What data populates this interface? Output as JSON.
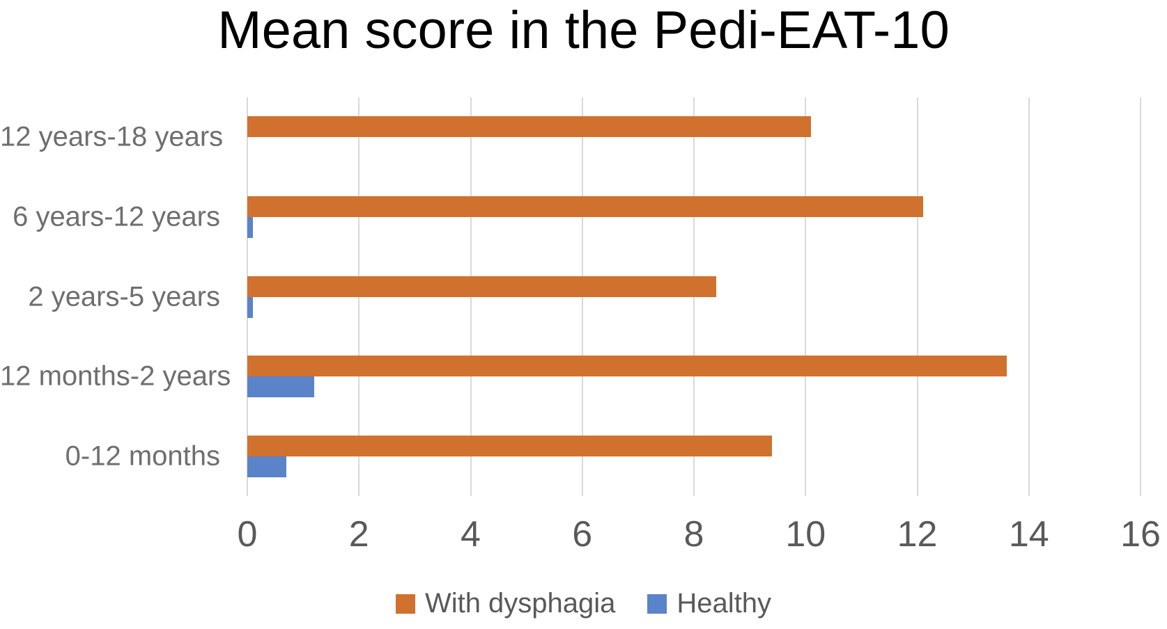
{
  "chart_data": {
    "type": "bar",
    "orientation": "horizontal",
    "title": "Mean score in the Pedi-EAT-10",
    "categories": [
      "12 years-18 years",
      "6 years-12 years",
      "2 years-5 years",
      "12 months-2 years",
      "0-12 months"
    ],
    "series": [
      {
        "name": "With dysphagia",
        "color": "#d0712e",
        "values": [
          10.1,
          12.1,
          8.4,
          13.6,
          9.4
        ]
      },
      {
        "name": "Healthy",
        "color": "#5b83c9",
        "values": [
          0,
          0.1,
          0.1,
          1.2,
          0.7
        ]
      }
    ],
    "xlim": [
      0,
      16
    ],
    "xticks": [
      0,
      2,
      4,
      6,
      8,
      10,
      12,
      14,
      16
    ],
    "grid": "vertical",
    "legend_position": "bottom",
    "colors": {
      "grid": "#d9d9d9",
      "tick_text": "#595959",
      "category_text": "#6e6e6e",
      "legend_text": "#595959",
      "title_text": "#000000"
    }
  }
}
